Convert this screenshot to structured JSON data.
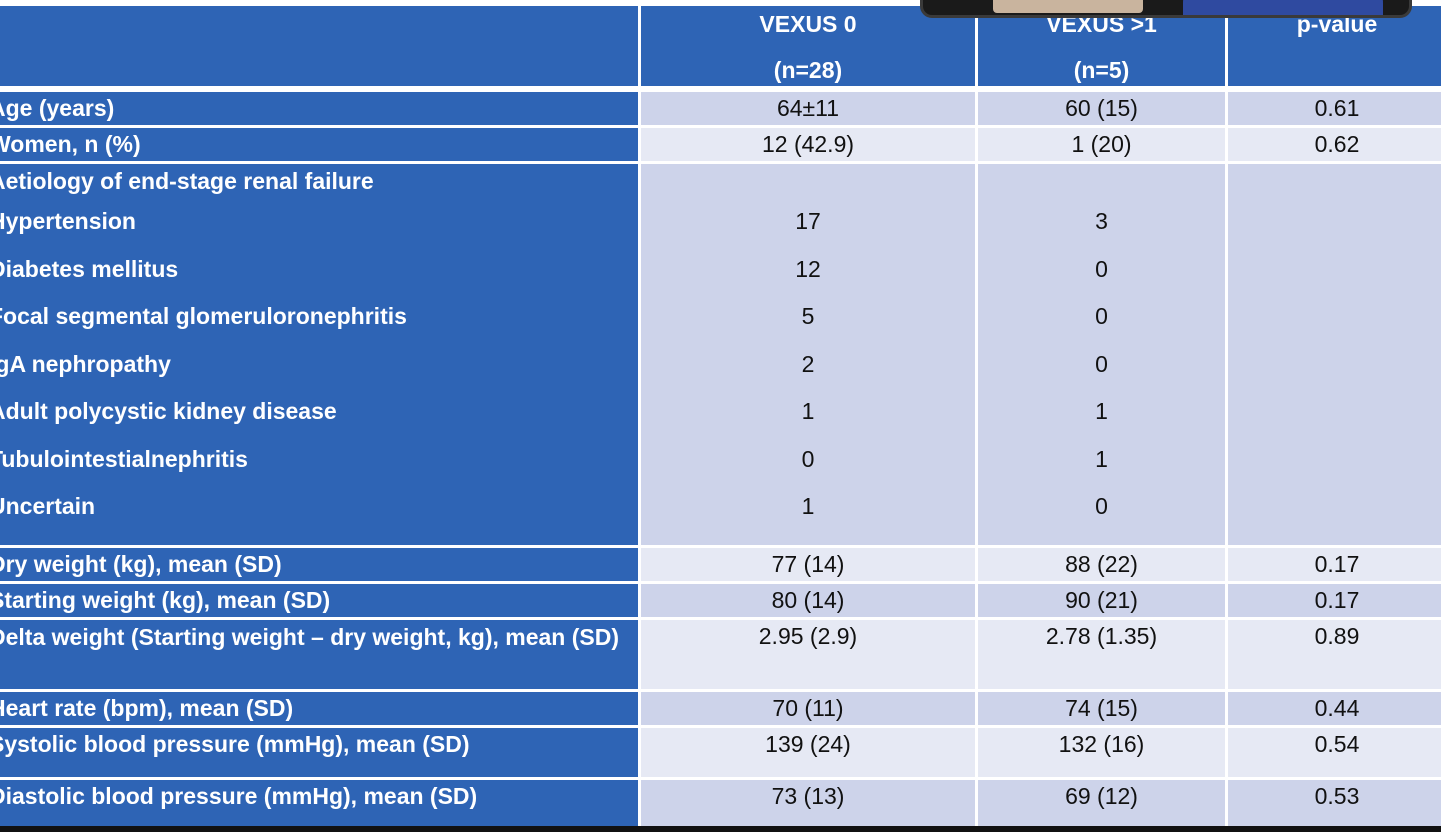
{
  "table": {
    "columns": [
      "",
      "VEXUS 0",
      "VEXUS >1",
      "p-value"
    ],
    "column_subtitles": [
      "",
      "(n=28)",
      "(n=5)",
      ""
    ],
    "rows": [
      {
        "label": "Age (years)",
        "v0": "64±11",
        "v1": "60 (15)",
        "p": "0.61"
      },
      {
        "label": "Women, n (%)",
        "v0": "12 (42.9)",
        "v1": "1 (20)",
        "p": "0.62"
      }
    ],
    "aetiology": {
      "heading": "Aetiology of end-stage renal failure",
      "items": [
        {
          "label": "Hypertension",
          "v0": "17",
          "v1": "3"
        },
        {
          "label": "Diabetes mellitus",
          "v0": "12",
          "v1": "0"
        },
        {
          "label": "Focal segmental glomeruloronephritis",
          "v0": "5",
          "v1": "0"
        },
        {
          "label": "IgA nephropathy",
          "v0": "2",
          "v1": "0"
        },
        {
          "label": "Adult polycystic kidney disease",
          "v0": "1",
          "v1": "1"
        },
        {
          "label": "Tubulointestialnephritis",
          "v0": "0",
          "v1": "1"
        },
        {
          "label": "Uncertain",
          "v0": "1",
          "v1": "0"
        }
      ]
    },
    "rows2": [
      {
        "label": "Dry weight (kg), mean (SD)",
        "v0": "77 (14)",
        "v1": "88 (22)",
        "p": "0.17"
      },
      {
        "label": "Starting weight (kg), mean (SD)",
        "v0": "80 (14)",
        "v1": "90 (21)",
        "p": "0.17"
      },
      {
        "label": "Delta weight (Starting weight – dry weight, kg), mean (SD)",
        "v0": "2.95 (2.9)",
        "v1": "2.78 (1.35)",
        "p": "0.89"
      },
      {
        "label": "Heart rate (bpm), mean (SD)",
        "v0": "70 (11)",
        "v1": "74 (15)",
        "p": "0.44"
      },
      {
        "label": "Systolic blood pressure (mmHg), mean (SD)",
        "v0": "139 (24)",
        "v1": "132 (16)",
        "p": "0.54"
      },
      {
        "label": "Diastolic blood pressure (mmHg), mean (SD)",
        "v0": "73 (13)",
        "v1": "69 (12)",
        "p": "0.53"
      }
    ]
  },
  "colors": {
    "header_blue": "#2e64b5",
    "cell_shade_dark": "#cdd3ea",
    "cell_shade_light": "#e6e9f4"
  }
}
